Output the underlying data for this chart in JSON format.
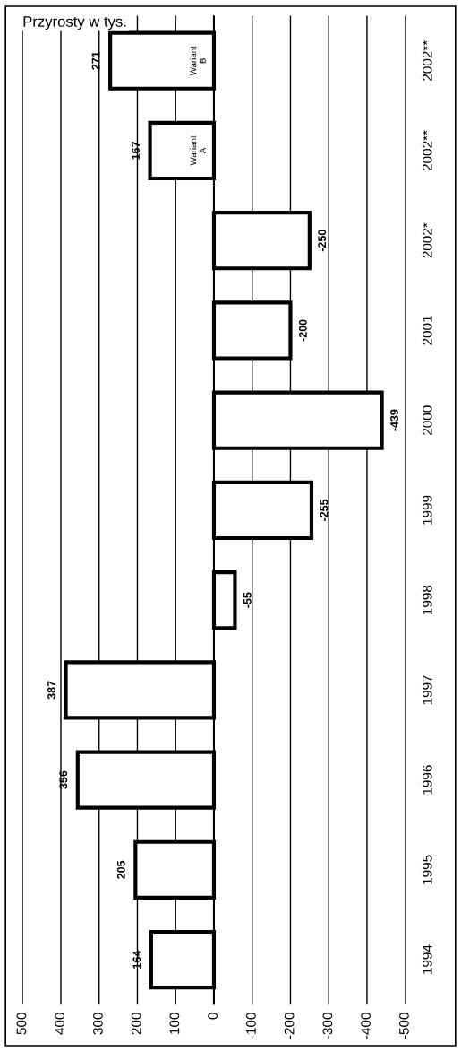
{
  "chart_data": {
    "type": "bar",
    "orientation": "horizontal",
    "xlabel": "Przyrosty w tys.",
    "categories": [
      "2002**",
      "2002**",
      "2002*",
      "2001",
      "2000",
      "1999",
      "1998",
      "1997",
      "1996",
      "1995",
      "1994"
    ],
    "values": [
      271,
      167,
      -250,
      -200,
      -439,
      -255,
      -55,
      387,
      356,
      205,
      164
    ],
    "color": "#ffffff",
    "xlim": [
      500,
      -500
    ],
    "xticks": [
      500,
      400,
      300,
      200,
      100,
      0,
      -100,
      -200,
      -300,
      -400,
      -500
    ],
    "grid": "x",
    "data_labels": true,
    "annotations": [
      "Wariant\nB",
      "Wariant\nA"
    ]
  }
}
